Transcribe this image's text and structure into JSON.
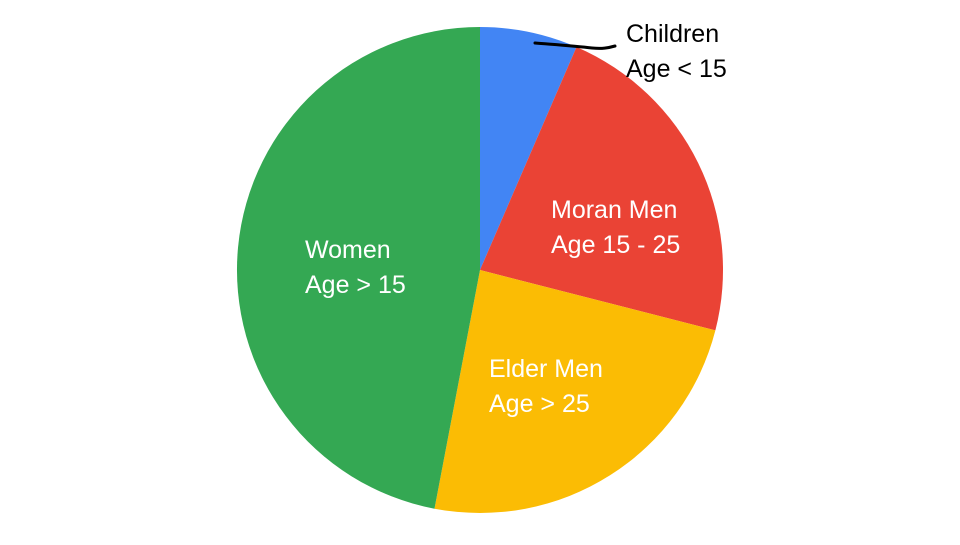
{
  "chart_data": {
    "type": "pie",
    "title": "",
    "slices": [
      {
        "label_lines": [
          "Children",
          "Age < 15"
        ],
        "value": 6.5,
        "color": "#4285f4",
        "label_position": "outside"
      },
      {
        "label_lines": [
          "Moran Men",
          "Age 15 - 25"
        ],
        "value": 22.5,
        "color": "#ea4335",
        "label_position": "inside"
      },
      {
        "label_lines": [
          "Elder Men",
          "Age > 25"
        ],
        "value": 24.0,
        "color": "#fbbc04",
        "label_position": "inside"
      },
      {
        "label_lines": [
          "Women",
          "Age > 15"
        ],
        "value": 47.0,
        "color": "#34a853",
        "label_position": "inside"
      }
    ],
    "start_angle_deg": 0,
    "direction": "clockwise",
    "legend": "none"
  }
}
